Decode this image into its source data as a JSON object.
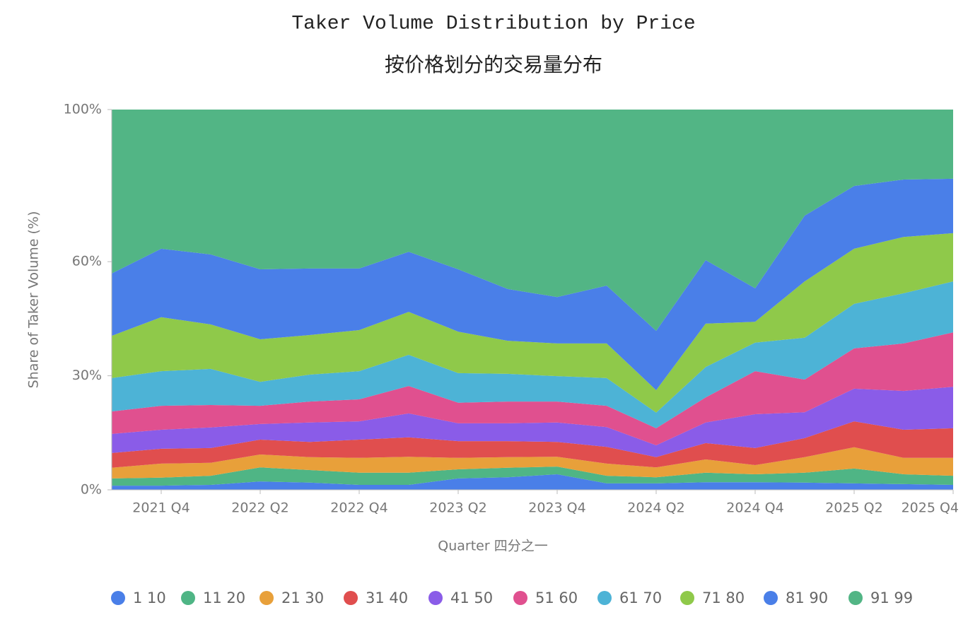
{
  "chart_data": {
    "type": "stacked-area",
    "title": "Taker Volume Distribution by Price",
    "subtitle": "按价格划分的交易量分布",
    "y_label": "Share of Taker Volume (%)",
    "x_label": "Quarter 四分之一",
    "categories": [
      null,
      "2021 Q4",
      null,
      "2022 Q2",
      null,
      "2022 Q4",
      null,
      "2023 Q2",
      null,
      "2023 Q4",
      null,
      "2024 Q2",
      null,
      "2024 Q4",
      null,
      "2025 Q2",
      null,
      "2025 Q4"
    ],
    "ylim": [
      0,
      100
    ],
    "yticks": [
      {
        "value": 0,
        "label": "0%"
      },
      {
        "value": 30,
        "label": "30%"
      },
      {
        "value": 60,
        "label": "60%"
      },
      {
        "value": 100,
        "label": "100%"
      }
    ],
    "series": [
      {
        "name": "1 10",
        "color": "#4a7fe8",
        "values": [
          1.1,
          1.1,
          1.3,
          2.2,
          1.9,
          1.3,
          1.3,
          3.0,
          3.3,
          4.1,
          1.7,
          1.7,
          2.0,
          2.0,
          1.9,
          1.7,
          1.5,
          1.3
        ]
      },
      {
        "name": "11 20",
        "color": "#4fb585",
        "values": [
          1.9,
          2.1,
          2.4,
          3.7,
          3.3,
          3.2,
          3.2,
          2.4,
          2.5,
          2.0,
          2.0,
          1.6,
          2.5,
          2.1,
          2.6,
          3.9,
          2.6,
          2.4
        ]
      },
      {
        "name": "21 30",
        "color": "#e8a03a",
        "values": [
          2.8,
          3.7,
          3.4,
          3.4,
          3.4,
          3.9,
          4.2,
          3.0,
          2.8,
          2.6,
          3.2,
          2.6,
          3.5,
          2.4,
          4.1,
          5.6,
          4.3,
          4.7
        ]
      },
      {
        "name": "31 40",
        "color": "#e04e4e",
        "values": [
          3.9,
          3.9,
          3.9,
          3.9,
          4.0,
          4.8,
          5.1,
          4.4,
          4.2,
          3.9,
          4.4,
          2.7,
          4.3,
          4.5,
          5.0,
          6.8,
          7.4,
          7.8
        ]
      },
      {
        "name": "41 50",
        "color": "#8a5ce8",
        "values": [
          5.0,
          5.0,
          5.4,
          4.1,
          5.1,
          4.8,
          6.3,
          4.7,
          4.7,
          5.1,
          5.2,
          3.1,
          5.4,
          8.9,
          6.8,
          8.6,
          10.2,
          10.9
        ]
      },
      {
        "name": "51 60",
        "color": "#e0508f",
        "values": [
          5.9,
          6.3,
          5.9,
          4.8,
          5.5,
          5.8,
          7.2,
          5.4,
          5.7,
          5.5,
          5.6,
          4.5,
          6.6,
          11.3,
          8.6,
          10.6,
          12.5,
          14.3
        ]
      },
      {
        "name": "61 70",
        "color": "#4db3d6",
        "values": [
          8.8,
          9.1,
          9.5,
          6.3,
          7.1,
          7.4,
          8.2,
          7.8,
          7.3,
          6.7,
          7.3,
          4.1,
          8.0,
          7.5,
          11.0,
          11.7,
          13.2,
          13.4
        ]
      },
      {
        "name": "71 80",
        "color": "#8fc94a",
        "values": [
          11.1,
          14.2,
          11.7,
          11.2,
          10.4,
          10.8,
          11.3,
          10.9,
          8.7,
          8.6,
          9.1,
          5.9,
          11.4,
          5.5,
          14.8,
          14.5,
          14.8,
          12.7
        ]
      },
      {
        "name": "81 90",
        "color": "#4a7fe8",
        "values": [
          16.4,
          18.0,
          18.4,
          18.4,
          17.5,
          16.2,
          15.8,
          16.4,
          13.6,
          12.2,
          15.2,
          15.6,
          16.7,
          8.8,
          17.3,
          16.5,
          15.1,
          14.3
        ]
      },
      {
        "name": "91 99",
        "color": "#52b585",
        "values": [
          43.1,
          36.6,
          38.1,
          42.0,
          41.8,
          41.8,
          37.4,
          42.0,
          47.2,
          49.3,
          46.3,
          58.2,
          39.6,
          47.0,
          27.9,
          20.1,
          18.4,
          18.2
        ]
      }
    ]
  }
}
